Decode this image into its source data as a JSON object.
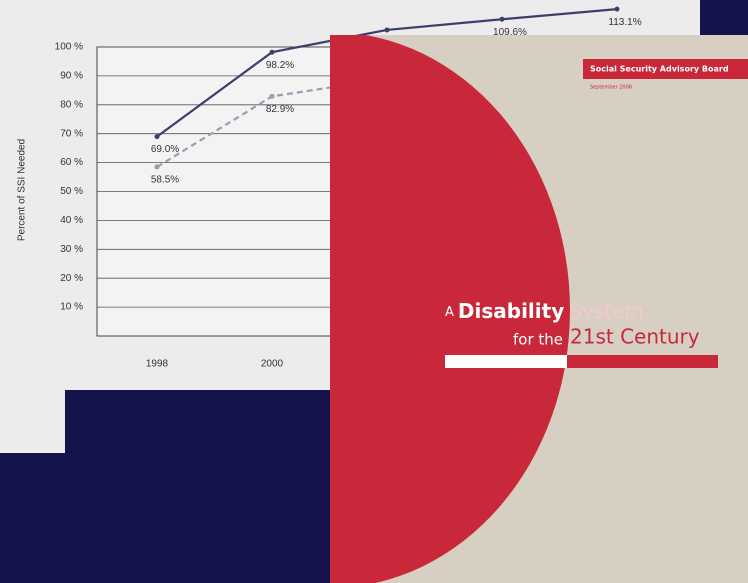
{
  "chart_data": {
    "type": "line",
    "y_label": "Percent of SSI Needed",
    "categories": [
      "1998",
      "2000",
      null,
      null,
      null
    ],
    "series": [
      {
        "name": null,
        "color": "#3b3f6c",
        "dash": false,
        "values": [
          69.0,
          98.2,
          105.9,
          109.6,
          113.1
        ],
        "value_labels": [
          "69.0%",
          "98.2%",
          null,
          "109.6%",
          "113.1%"
        ]
      },
      {
        "name": null,
        "color": "#9b9bb2",
        "dash": true,
        "values": [
          58.5,
          82.9,
          89,
          null,
          null
        ],
        "value_labels": [
          "58.5%",
          "82.9%",
          null,
          null,
          null
        ]
      }
    ],
    "ylim": [
      0,
      100
    ],
    "yticks": [
      {
        "value": 10,
        "label": "10 %"
      },
      {
        "value": 20,
        "label": "20 %"
      },
      {
        "value": 30,
        "label": "30 %"
      },
      {
        "value": 40,
        "label": "40 %"
      },
      {
        "value": 50,
        "label": "50 %"
      },
      {
        "value": 60,
        "label": "60 %"
      },
      {
        "value": 70,
        "label": "70 %"
      },
      {
        "value": 80,
        "label": "80 %"
      },
      {
        "value": 90,
        "label": "90 %"
      },
      {
        "value": 100,
        "label": "100 %"
      }
    ],
    "grid": true
  },
  "cover": {
    "board": "Social Security Advisory Board",
    "date": "September 2006",
    "title_a": "A",
    "title_disability": "Disability",
    "title_system": "System",
    "title_for": "for the",
    "title_century": "21st Century"
  }
}
